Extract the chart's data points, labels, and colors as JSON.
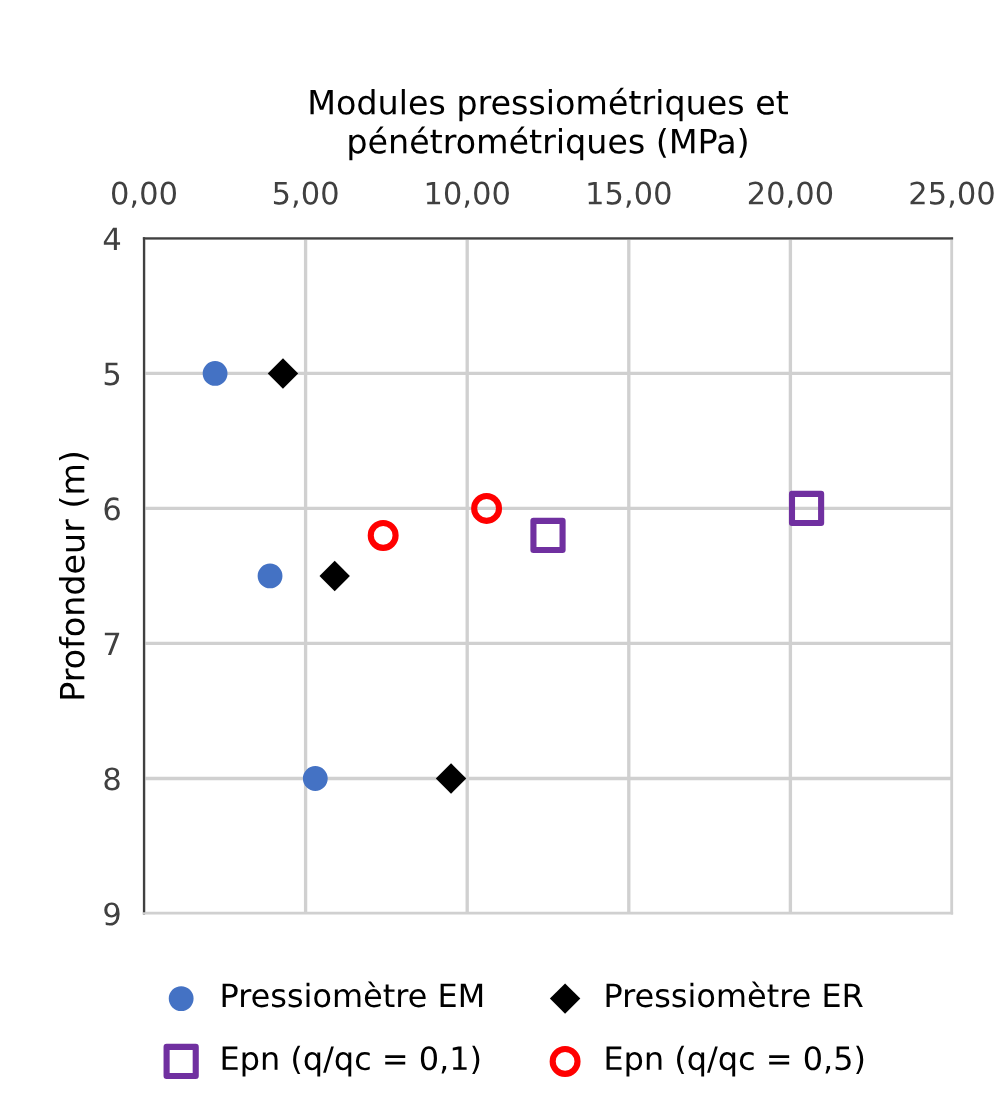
{
  "chart_data": {
    "type": "scatter",
    "xlabel": "Modules pressiométriques et\npénétrométriques (MPa)",
    "ylabel": "Profondeur (m)",
    "xlim": [
      0,
      25
    ],
    "xticks": [
      {
        "value": 0,
        "label": "0,00"
      },
      {
        "value": 5,
        "label": "5,00"
      },
      {
        "value": 10,
        "label": "10,00"
      },
      {
        "value": 15,
        "label": "15,00"
      },
      {
        "value": 20,
        "label": "20,00"
      },
      {
        "value": 25,
        "label": "25,00"
      }
    ],
    "ylim": [
      9,
      4
    ],
    "yticks": [
      4,
      5,
      6,
      7,
      8,
      9
    ],
    "grid": true,
    "legend": "bottom",
    "series": [
      {
        "name": "Pressiomètre EM",
        "color": "#4472c4",
        "marker": "circle",
        "x": [
          2.2,
          3.9,
          5.3
        ],
        "values": [
          5,
          6.5,
          8
        ]
      },
      {
        "name": "Pressiomètre ER",
        "color": "#000000",
        "marker": "diamond",
        "x": [
          4.3,
          5.9,
          9.5
        ],
        "values": [
          5,
          6.5,
          8
        ]
      },
      {
        "name": "Epn (q/qc = 0,1)",
        "color": "#7030a0",
        "marker": "square",
        "x": [
          12.5,
          20.5
        ],
        "values": [
          6.2,
          6
        ]
      },
      {
        "name": "Epn (q/qc = 0,5)",
        "color": "#ff0000",
        "marker": "circle",
        "x": [
          7.4,
          10.6
        ],
        "values": [
          6.2,
          6
        ]
      }
    ]
  }
}
